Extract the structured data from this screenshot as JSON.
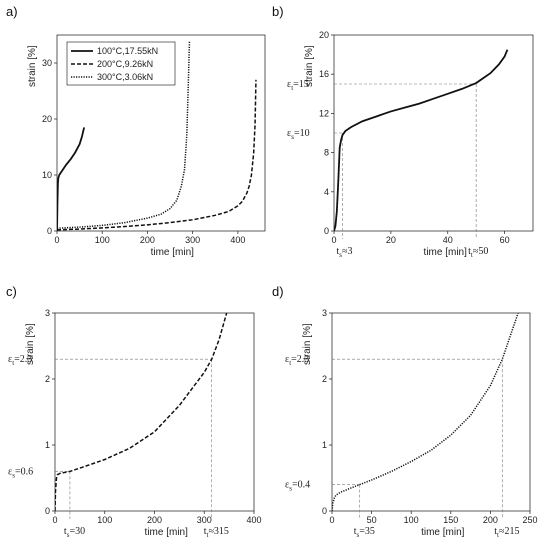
{
  "chart_data": [
    {
      "panel": "a)",
      "type": "line",
      "xlabel": "time [min]",
      "ylabel": "strain [%]",
      "xlim": [
        0,
        460
      ],
      "ylim": [
        0,
        35
      ],
      "xticks": [
        "0",
        "100",
        "200",
        "300",
        "400"
      ],
      "yticks": [
        "0",
        "10",
        "20",
        "30"
      ],
      "legend_placement": "top-left",
      "series": [
        {
          "name": "100°C,17.55kN",
          "style": "solid",
          "x": [
            0,
            1,
            2,
            3,
            5,
            10,
            15,
            20,
            30,
            40,
            50,
            55,
            60
          ],
          "y": [
            0,
            5,
            8.5,
            9.5,
            10,
            10.6,
            11.2,
            11.8,
            12.8,
            14,
            15.5,
            16.8,
            18.5
          ]
        },
        {
          "name": "200°C,9.26kN",
          "style": "dashed",
          "x": [
            0,
            50,
            100,
            150,
            200,
            250,
            300,
            350,
            380,
            400,
            410,
            420,
            425,
            430,
            435,
            438,
            440
          ],
          "y": [
            0.2,
            0.35,
            0.55,
            0.8,
            1.1,
            1.5,
            2,
            2.8,
            3.5,
            4.5,
            5.3,
            6.8,
            8,
            10,
            14,
            19,
            27
          ]
        },
        {
          "name": "300°C,3.06kN",
          "style": "dotted",
          "x": [
            0,
            50,
            100,
            150,
            200,
            230,
            250,
            265,
            275,
            282,
            287,
            290,
            293
          ],
          "y": [
            0.5,
            0.7,
            1.0,
            1.5,
            2.3,
            3.0,
            4.0,
            5.5,
            8,
            11,
            17,
            25,
            34
          ]
        }
      ]
    },
    {
      "panel": "b)",
      "type": "line",
      "xlabel": "time [min]",
      "ylabel": "strain [%]",
      "xlim": [
        0,
        70
      ],
      "ylim": [
        0,
        20
      ],
      "xticks": [
        "0",
        "20",
        "40",
        "60"
      ],
      "yticks": [
        "0",
        "4",
        "8",
        "12",
        "16",
        "20"
      ],
      "annotations": {
        "eps_s": "=10",
        "eps_t": "=15",
        "t_s": "≈3",
        "t_t": "≈50"
      },
      "marks": {
        "eps_s": 10,
        "eps_t": 15,
        "t_s": 3,
        "t_t": 50
      },
      "series": [
        {
          "style": "solid",
          "x": [
            0,
            0.5,
            1,
            1.5,
            2,
            2.5,
            3,
            4,
            6,
            10,
            15,
            20,
            25,
            30,
            35,
            40,
            45,
            50,
            55,
            58,
            60,
            61
          ],
          "y": [
            0,
            0.5,
            2,
            5,
            8.5,
            9.3,
            9.8,
            10.2,
            10.6,
            11.2,
            11.7,
            12.2,
            12.6,
            13,
            13.5,
            14,
            14.5,
            15.1,
            16.1,
            17,
            17.8,
            18.5
          ]
        }
      ]
    },
    {
      "panel": "c)",
      "type": "line",
      "xlabel": "time [min]",
      "ylabel": "strain [%]",
      "xlim": [
        0,
        400
      ],
      "ylim": [
        0,
        3
      ],
      "xticks": [
        "0",
        "100",
        "200",
        "300",
        "400"
      ],
      "yticks": [
        "0",
        "1",
        "2",
        "3"
      ],
      "annotations": {
        "eps_s": "=0.6",
        "eps_t": "=2.3",
        "t_s": "=30",
        "t_t": "≈315"
      },
      "marks": {
        "eps_s": 0.6,
        "eps_t": 2.3,
        "t_s": 30,
        "t_t": 315
      },
      "series": [
        {
          "style": "dashed",
          "x": [
            0,
            1,
            3,
            5,
            10,
            30,
            50,
            100,
            150,
            200,
            250,
            280,
            300,
            315,
            330,
            345
          ],
          "y": [
            0,
            0.3,
            0.5,
            0.55,
            0.57,
            0.6,
            0.65,
            0.78,
            0.95,
            1.2,
            1.6,
            1.9,
            2.1,
            2.3,
            2.6,
            3.0
          ]
        }
      ]
    },
    {
      "panel": "d)",
      "type": "line",
      "xlabel": "time [min]",
      "ylabel": "strain [%]",
      "xlim": [
        0,
        250
      ],
      "ylim": [
        0,
        3
      ],
      "xticks": [
        "0",
        "50",
        "100",
        "150",
        "200",
        "250"
      ],
      "yticks": [
        "0",
        "1",
        "2",
        "3"
      ],
      "annotations": {
        "eps_s": "=0.4",
        "eps_t": "=2.3",
        "t_s": "=35",
        "t_t": "≈215"
      },
      "marks": {
        "eps_s": 0.4,
        "eps_t": 2.3,
        "t_s": 35,
        "t_t": 215
      },
      "series": [
        {
          "style": "dotted",
          "x": [
            0,
            1,
            3,
            5,
            10,
            20,
            35,
            50,
            75,
            100,
            125,
            150,
            175,
            200,
            215,
            225,
            235
          ],
          "y": [
            0,
            0.12,
            0.2,
            0.24,
            0.28,
            0.33,
            0.4,
            0.47,
            0.6,
            0.75,
            0.92,
            1.15,
            1.45,
            1.9,
            2.3,
            2.65,
            3.0
          ]
        }
      ]
    }
  ]
}
